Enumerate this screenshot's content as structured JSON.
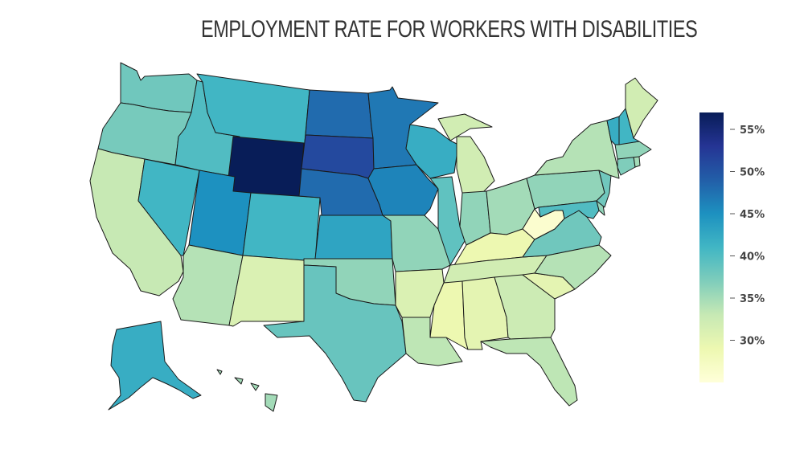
{
  "title": "EMPLOYMENT RATE FOR WORKERS WITH DISABILITIES",
  "colorscale": [
    "#ffffd9",
    "#edf8b1",
    "#c7e9b4",
    "#7fcdbb",
    "#41b6c4",
    "#1d91c0",
    "#225ea8",
    "#253494",
    "#081d58"
  ],
  "scale_range": [
    25,
    57
  ],
  "colorbar_ticks": [
    {
      "value": 55,
      "label": "55%"
    },
    {
      "value": 50,
      "label": "50%"
    },
    {
      "value": 45,
      "label": "45%"
    },
    {
      "value": 40,
      "label": "40%"
    },
    {
      "value": 35,
      "label": "35%"
    },
    {
      "value": 30,
      "label": "30%"
    }
  ],
  "chart_data": {
    "type": "choropleth",
    "title": "EMPLOYMENT RATE FOR WORKERS WITH DISABILITIES",
    "unit": "%",
    "values": {
      "WA": 38,
      "OR": 37.5,
      "CA": 33,
      "NV": 41,
      "ID": 40,
      "MT": 41,
      "WY": 57,
      "UT": 45,
      "CO": 41,
      "AZ": 34,
      "NM": 31,
      "ND": 48,
      "SD": 51,
      "NE": 48,
      "KS": 43,
      "OK": 36,
      "TX": 38.5,
      "MN": 47,
      "IA": 46,
      "MO": 36,
      "AR": 31,
      "LA": 33.5,
      "WI": 42,
      "IL": 39,
      "MS": 29,
      "AL": 30,
      "MI": 32,
      "IN": 36,
      "OH": 35,
      "KY": 29,
      "TN": 32,
      "GA": 32.5,
      "FL": 33.5,
      "SC": 30,
      "NC": 34,
      "VA": 38,
      "WV": 26,
      "PA": 36,
      "NY": 34,
      "ME": 32,
      "VT": 42,
      "NH": 41,
      "MA": 36,
      "RI": 35,
      "CT": 37,
      "NJ": 38,
      "DE": 36,
      "MD": 40,
      "AK": 42,
      "HI": 35
    }
  }
}
